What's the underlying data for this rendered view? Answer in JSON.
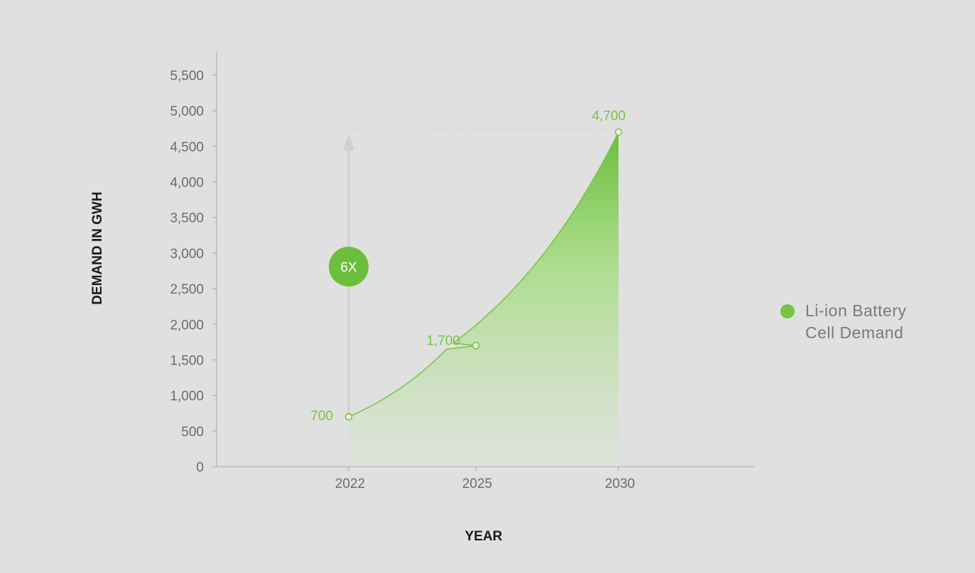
{
  "chart_data": {
    "type": "area",
    "x": [
      2022,
      2025,
      2030
    ],
    "categories": [
      "2022",
      "2025",
      "2030"
    ],
    "series": [
      {
        "name": "Li-ion Battery Cell Demand",
        "values": [
          700,
          1700,
          4700
        ],
        "data_labels": [
          "700",
          "1,700",
          "4,700"
        ]
      }
    ],
    "xlabel": "YEAR",
    "ylabel": "DEMAND IN GWH",
    "ylim": [
      0,
      5500
    ],
    "yticks": [
      0,
      500,
      1000,
      1500,
      2000,
      2500,
      3000,
      3500,
      4000,
      4500,
      5000,
      5500
    ],
    "ytick_labels": [
      "0",
      "500",
      "1,000",
      "1,500",
      "2,000",
      "2,500",
      "3,000",
      "3,500",
      "4,000",
      "4,500",
      "5,000",
      "5,500"
    ],
    "annotation": {
      "text": "6X"
    },
    "legend": {
      "entries": [
        "Li-ion Battery",
        "Cell Demand"
      ],
      "placement": "right"
    },
    "grid": false,
    "colors": {
      "series": "#76c442",
      "badge": "#6bbf3a",
      "arrow": "#cfcfcf",
      "axis": "#9e9e9e"
    }
  }
}
